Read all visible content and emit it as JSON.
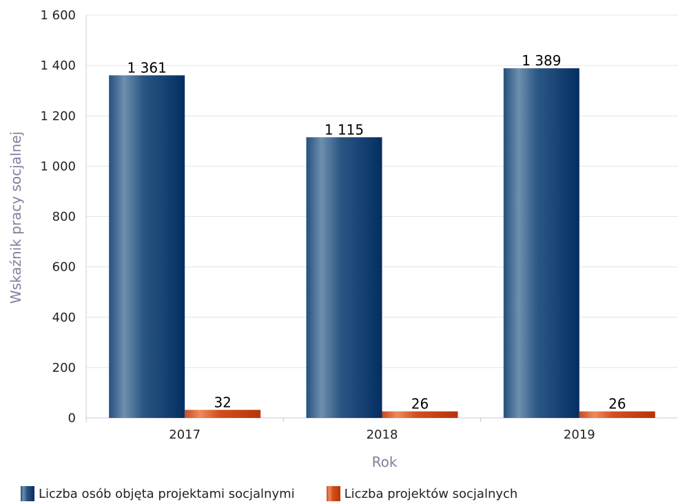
{
  "chart_data": {
    "type": "bar",
    "categories": [
      "2017",
      "2018",
      "2019"
    ],
    "series": [
      {
        "name": "Liczba osób objęta projektami socjalnymi",
        "values": [
          1361,
          1115,
          1389
        ],
        "labels": [
          "1 361",
          "1 115",
          "1 389"
        ],
        "color": "#0b3a6e"
      },
      {
        "name": "Liczba projektów socjalnych",
        "values": [
          32,
          26,
          26
        ],
        "labels": [
          "32",
          "26",
          "26"
        ],
        "color": "#c8401a"
      }
    ],
    "xlabel": "Rok",
    "ylabel": "Wskaźnik pracy socjalnej",
    "ylim": [
      0,
      1600
    ],
    "yticks": [
      0,
      200,
      400,
      600,
      800,
      1000,
      1200,
      1400,
      1600
    ],
    "ytick_labels": [
      "0",
      "200",
      "400",
      "600",
      "800",
      "1 000",
      "1 200",
      "1 400",
      "1 600"
    ],
    "grid": true,
    "legend_position": "bottom-left"
  }
}
